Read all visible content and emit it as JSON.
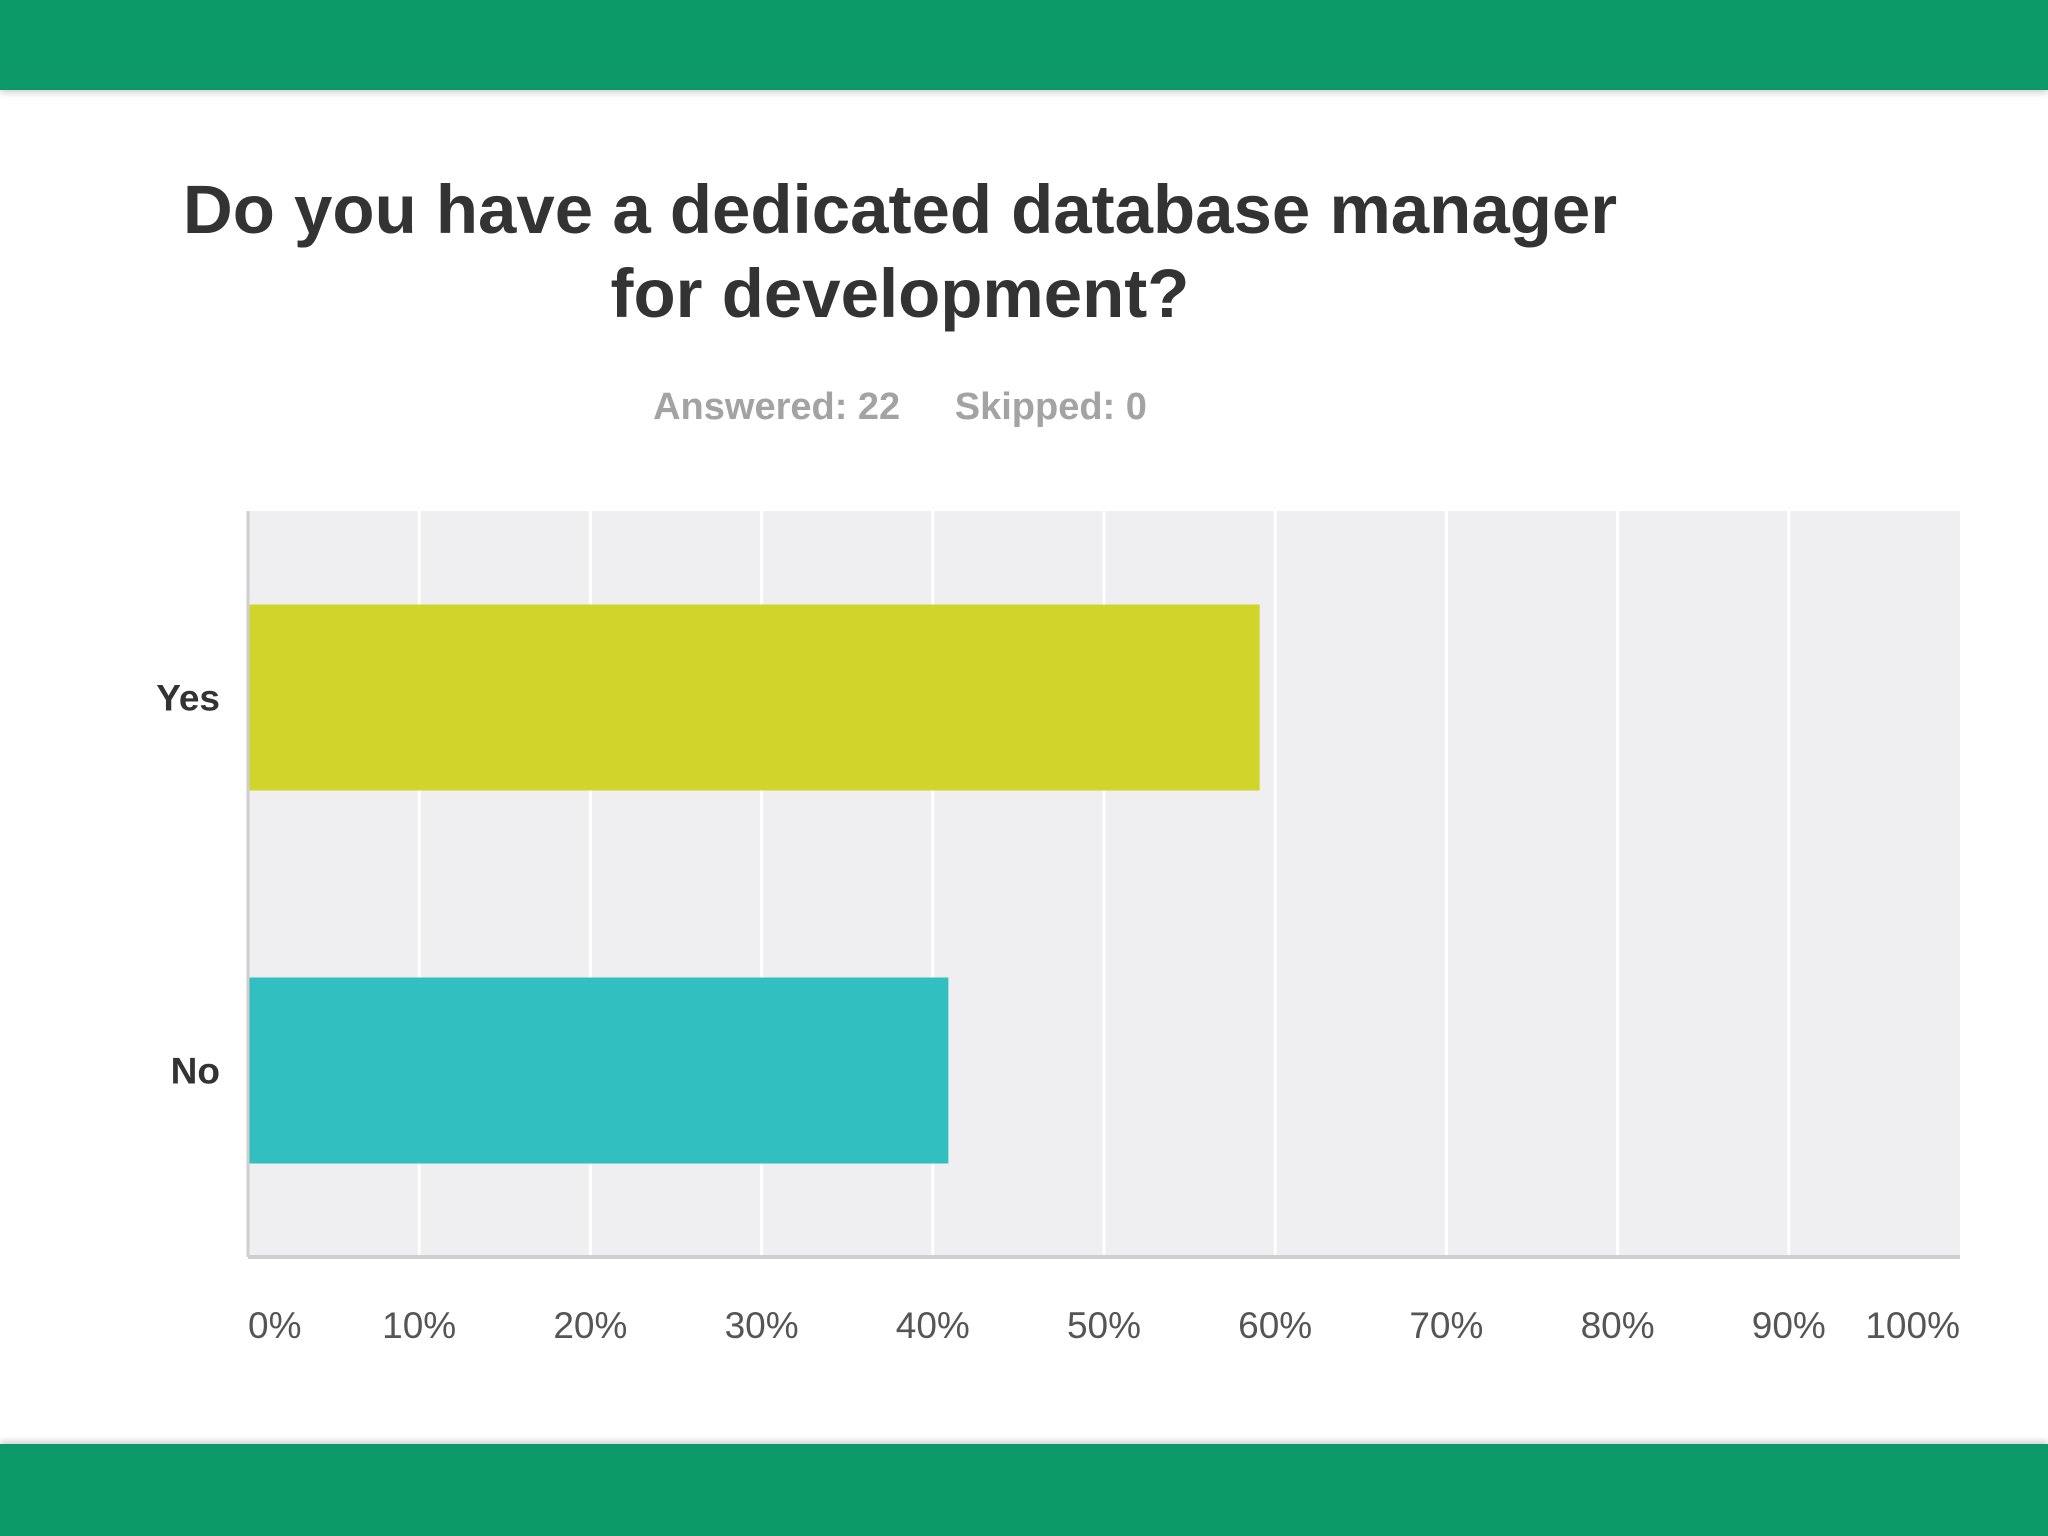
{
  "header": {
    "title_line1": "Do you have a dedicated database manager",
    "title_line2": "for development?",
    "answered": "Answered: 22",
    "skipped": "Skipped: 0"
  },
  "colors": {
    "band": "#0b9a67",
    "plot_background": "#efeef0",
    "gridline": "#ffffff",
    "yes_bar": "#d1d42b",
    "no_bar": "#32bfbf"
  },
  "chart_data": {
    "type": "bar",
    "orientation": "horizontal",
    "title": "Do you have a dedicated database manager for development?",
    "categories": [
      "Yes",
      "No"
    ],
    "values": [
      59.09,
      40.91
    ],
    "unit": "%",
    "xlim": [
      0,
      100
    ],
    "xticks": [
      "0%",
      "10%",
      "20%",
      "30%",
      "40%",
      "50%",
      "60%",
      "70%",
      "80%",
      "90%",
      "100%"
    ],
    "bar_colors": [
      "#d1d42b",
      "#32bfbf"
    ],
    "grid": true,
    "legend": "none"
  }
}
